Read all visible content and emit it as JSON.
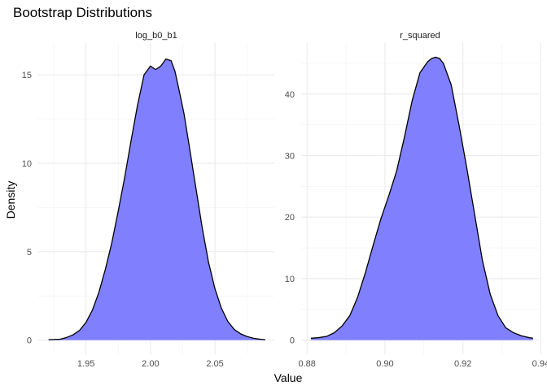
{
  "chart_data": {
    "type": "area",
    "title": "Bootstrap Distributions",
    "xlabel": "Value",
    "ylabel": "Density",
    "grid": true,
    "theme": "minimal",
    "fill_color": "#8080FF",
    "line_color": "#000000",
    "panels": [
      {
        "name": "log_b0_b1",
        "xlim": [
          1.913,
          2.096
        ],
        "ylim": [
          -0.8,
          16.8
        ],
        "x_ticks": [
          1.95,
          2.0,
          2.05
        ],
        "x_tick_labels": [
          "1.95",
          "2.00",
          "2.05"
        ],
        "y_ticks": [
          0,
          5,
          10,
          15
        ],
        "y_tick_labels": [
          "0",
          "5",
          "10",
          "15"
        ],
        "x": [
          1.921,
          1.93,
          1.935,
          1.94,
          1.945,
          1.95,
          1.955,
          1.96,
          1.965,
          1.97,
          1.975,
          1.98,
          1.985,
          1.99,
          1.995,
          2.0,
          2.004,
          2.008,
          2.012,
          2.016,
          2.019,
          2.022,
          2.026,
          2.03,
          2.035,
          2.04,
          2.045,
          2.05,
          2.055,
          2.06,
          2.065,
          2.07,
          2.075,
          2.08,
          2.085,
          2.089
        ],
        "y": [
          0.02,
          0.05,
          0.15,
          0.3,
          0.55,
          1.0,
          1.7,
          2.7,
          4.0,
          5.5,
          7.3,
          9.2,
          11.3,
          13.3,
          15.0,
          15.5,
          15.3,
          15.5,
          15.9,
          15.8,
          15.2,
          14.2,
          12.8,
          11.0,
          8.7,
          6.4,
          4.4,
          2.9,
          1.8,
          1.05,
          0.6,
          0.35,
          0.2,
          0.1,
          0.05,
          0.02
        ]
      },
      {
        "name": "r_squared",
        "xlim": [
          0.8785,
          0.9395
        ],
        "ylim": [
          -2.3,
          48.3
        ],
        "x_ticks": [
          0.88,
          0.9,
          0.92,
          0.94
        ],
        "x_tick_labels": [
          "0.88",
          "0.90",
          "0.92",
          "0.94"
        ],
        "y_ticks": [
          0,
          10,
          20,
          30,
          40
        ],
        "y_tick_labels": [
          "0",
          "10",
          "20",
          "30",
          "40"
        ],
        "x": [
          0.881,
          0.883,
          0.885,
          0.887,
          0.889,
          0.891,
          0.893,
          0.895,
          0.897,
          0.899,
          0.901,
          0.903,
          0.905,
          0.907,
          0.909,
          0.911,
          0.912,
          0.913,
          0.914,
          0.915,
          0.917,
          0.919,
          0.921,
          0.923,
          0.925,
          0.927,
          0.929,
          0.931,
          0.933,
          0.935,
          0.937,
          0.938
        ],
        "y": [
          0.3,
          0.4,
          0.6,
          1.2,
          2.3,
          4.0,
          7.0,
          11.0,
          15.5,
          19.8,
          23.5,
          27.5,
          33.0,
          39.0,
          43.5,
          45.3,
          45.8,
          46.0,
          45.8,
          45.0,
          41.5,
          35.0,
          28.0,
          20.5,
          13.0,
          7.5,
          4.0,
          2.0,
          1.2,
          0.7,
          0.4,
          0.3
        ]
      }
    ]
  }
}
